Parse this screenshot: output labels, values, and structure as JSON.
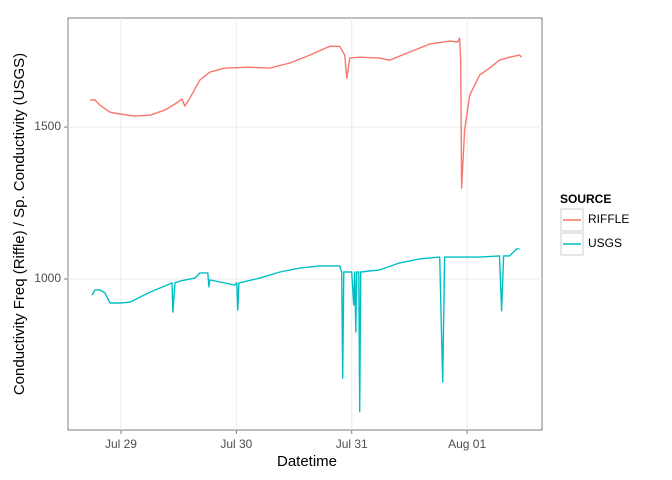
{
  "chart_data": {
    "type": "line",
    "x_label": "Datetime",
    "y_label": "Conductivity Freq (Riffle) / Sp. Conductivity (USGS)",
    "legend_title": "SOURCE",
    "legend_position": "right",
    "grid": true,
    "xlim": [
      28.541,
      32.649
    ],
    "ylim": [
      503,
      1859
    ],
    "xticks": [
      {
        "value": 29,
        "label": "Jul 29"
      },
      {
        "value": 30,
        "label": "Jul 30"
      },
      {
        "value": 31,
        "label": "Jul 31"
      },
      {
        "value": 32,
        "label": "Aug 01"
      }
    ],
    "yticks": [
      1000,
      1500
    ],
    "series": [
      {
        "name": "RIFFLE",
        "color": "#f8766d",
        "x": [
          28.732,
          28.775,
          28.818,
          28.905,
          28.991,
          29.121,
          29.251,
          29.381,
          29.468,
          29.528,
          29.554,
          29.597,
          29.684,
          29.771,
          29.9,
          30.117,
          30.29,
          30.463,
          30.636,
          30.81,
          30.896,
          30.939,
          30.957,
          30.983,
          31.069,
          31.242,
          31.329,
          31.502,
          31.675,
          31.848,
          31.918,
          31.935,
          31.944,
          31.952,
          31.978,
          32.022,
          32.108,
          32.195,
          32.281,
          32.368,
          32.455,
          32.472
        ],
        "values": [
          1589,
          1589,
          1572,
          1549,
          1543,
          1536,
          1539,
          1556,
          1576,
          1592,
          1569,
          1595,
          1655,
          1681,
          1694,
          1697,
          1694,
          1711,
          1737,
          1766,
          1766,
          1737,
          1661,
          1727,
          1730,
          1727,
          1720,
          1747,
          1773,
          1783,
          1780,
          1793,
          1720,
          1299,
          1490,
          1605,
          1671,
          1694,
          1720,
          1730,
          1737,
          1730
        ]
      },
      {
        "name": "USGS",
        "color": "#00bfc4",
        "x": [
          28.749,
          28.775,
          28.818,
          28.861,
          28.905,
          28.991,
          29.078,
          29.251,
          29.381,
          29.442,
          29.45,
          29.468,
          29.511,
          29.641,
          29.684,
          29.753,
          29.762,
          29.771,
          29.857,
          29.987,
          30.004,
          30.013,
          30.022,
          30.203,
          30.377,
          30.55,
          30.723,
          30.896,
          30.913,
          30.922,
          30.931,
          31.0,
          31.017,
          31.026,
          31.035,
          31.043,
          31.061,
          31.069,
          31.078,
          31.242,
          31.416,
          31.589,
          31.762,
          31.788,
          31.805,
          31.935,
          32.108,
          32.281,
          32.299,
          32.316,
          32.368,
          32.429,
          32.455
        ],
        "values": [
          947,
          964,
          964,
          954,
          921,
          921,
          924,
          957,
          977,
          987,
          891,
          987,
          993,
          1003,
          1020,
          1020,
          974,
          997,
          990,
          980,
          987,
          898,
          987,
          1003,
          1023,
          1036,
          1043,
          1043,
          1023,
          674,
          1023,
          1023,
          914,
          1023,
          826,
          1023,
          1023,
          563,
          1023,
          1030,
          1053,
          1066,
          1072,
          661,
          1072,
          1072,
          1072,
          1076,
          895,
          1076,
          1076,
          1099,
          1099
        ]
      }
    ]
  }
}
